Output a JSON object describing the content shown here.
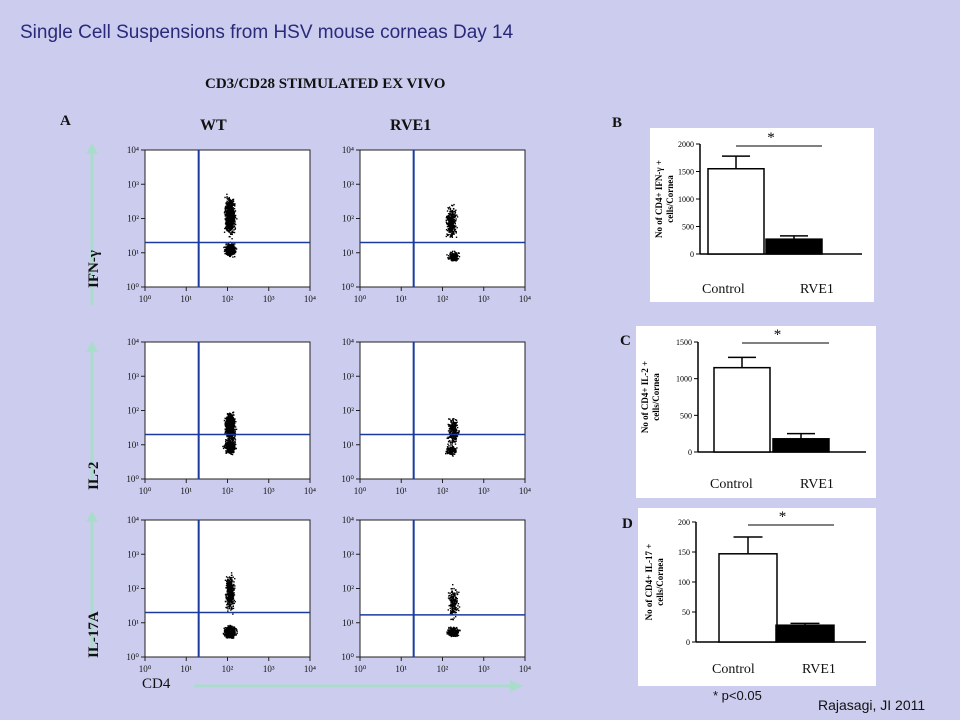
{
  "page": {
    "title": "Single Cell Suspensions from HSV mouse corneas Day 14",
    "subtitle": "CD3/CD28 STIMULATED EX VIVO",
    "credit": "Rajasagi, JI 2011",
    "footnote": "* p<0.05",
    "accent_color": "#2a2a7a",
    "background_color": "#ccccee"
  },
  "panel_a": {
    "letter": "A",
    "col_labels": [
      "WT",
      "RVE1"
    ],
    "row_labels": [
      "IFN-γ",
      "IL-2",
      "IL-17A"
    ],
    "x_axis_label": "CD4",
    "tick_labels": [
      "10⁰",
      "10¹",
      "10²",
      "10³",
      "10⁴"
    ]
  },
  "chart_data": [
    {
      "type": "scatter",
      "panel": "A",
      "axis_scale": "log",
      "xlim": [
        1,
        10000
      ],
      "ylim": [
        1,
        10000
      ],
      "gate_color": "#1a3aa0",
      "plots": [
        {
          "row": "IFN-γ",
          "col": "WT",
          "gate_x": 20,
          "gate_y": 20
        },
        {
          "row": "IFN-γ",
          "col": "RVE1",
          "gate_x": 20,
          "gate_y": 20
        },
        {
          "row": "IL-2",
          "col": "WT",
          "gate_x": 20,
          "gate_y": 20
        },
        {
          "row": "IL-2",
          "col": "RVE1",
          "gate_x": 20,
          "gate_y": 20
        },
        {
          "row": "IL-17A",
          "col": "WT",
          "gate_x": 20,
          "gate_y": 20
        },
        {
          "row": "IL-17A",
          "col": "RVE1",
          "gate_x": 20,
          "gate_y": 17
        }
      ]
    },
    {
      "type": "bar",
      "panel": "B",
      "letter": "B",
      "categories": [
        "Control",
        "RVE1"
      ],
      "values": [
        1550,
        270
      ],
      "errors": [
        230,
        60
      ],
      "colors": [
        "#ffffff",
        "#000000"
      ],
      "ylabel_lines": [
        "No of CD4+ IFN-γ +",
        "cells/Cornea"
      ],
      "ylim": [
        0,
        2000
      ],
      "yticks": [
        0,
        500,
        1000,
        1500,
        2000
      ],
      "significance": "*"
    },
    {
      "type": "bar",
      "panel": "C",
      "letter": "C",
      "categories": [
        "Control",
        "RVE1"
      ],
      "values": [
        1150,
        180
      ],
      "errors": [
        140,
        70
      ],
      "colors": [
        "#ffffff",
        "#000000"
      ],
      "ylabel_lines": [
        "No of CD4+ IL-2 +",
        "cells/Cornea"
      ],
      "ylim": [
        0,
        1500
      ],
      "yticks": [
        0,
        500,
        1000,
        1500
      ],
      "significance": "*"
    },
    {
      "type": "bar",
      "panel": "D",
      "letter": "D",
      "categories": [
        "Control",
        "RVE1"
      ],
      "values": [
        147,
        28
      ],
      "errors": [
        28,
        3
      ],
      "colors": [
        "#ffffff",
        "#000000"
      ],
      "ylabel_lines": [
        "No of CD4+ IL-17 +",
        "cells/Cornea"
      ],
      "ylim": [
        0,
        200
      ],
      "yticks": [
        0,
        50,
        100,
        150,
        200
      ],
      "significance": "*"
    }
  ]
}
